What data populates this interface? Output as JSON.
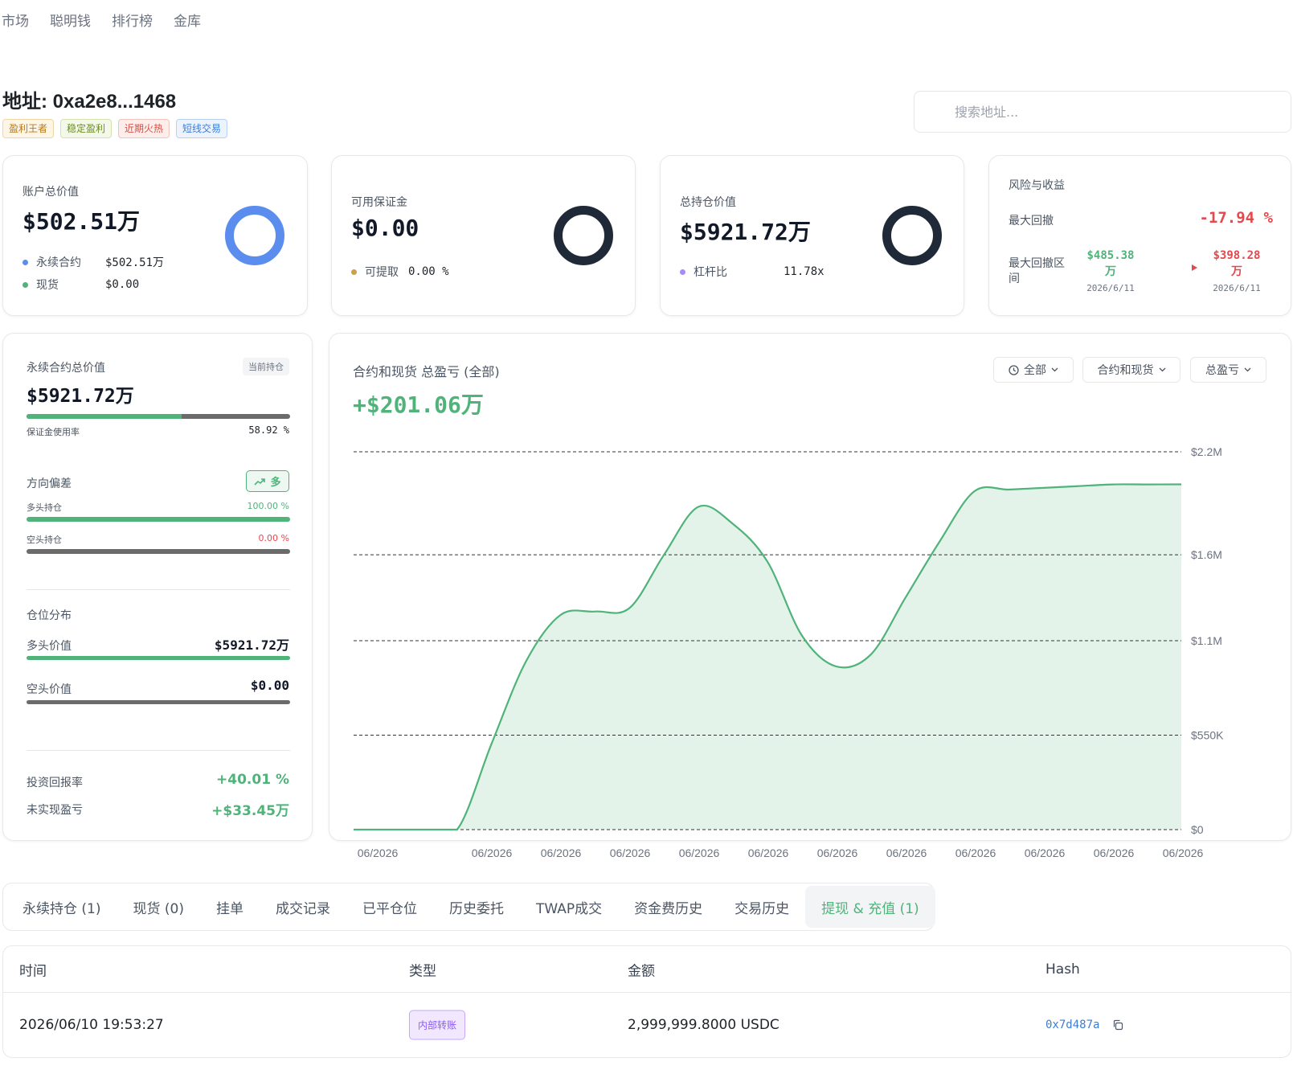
{
  "nav": {
    "items": [
      "市场",
      "聪明钱",
      "排行榜",
      "金库"
    ]
  },
  "header": {
    "address_label": "地址: 0xa2e8...1468",
    "tags": [
      "盈利王者",
      "稳定盈利",
      "近期火热",
      "短线交易"
    ],
    "search_placeholder": "搜索地址..."
  },
  "cards": {
    "account": {
      "label": "账户总价值",
      "value": "$502.51万",
      "rows": [
        {
          "label": "永续合约",
          "value": "$502.51万",
          "color": "#5b8def"
        },
        {
          "label": "现货",
          "value": "$0.00",
          "color": "#4fb37a"
        }
      ],
      "ring_color": "#5b8def"
    },
    "margin": {
      "label": "可用保证金",
      "value": "$0.00",
      "rows": [
        {
          "label": "可提取",
          "value": "0.00 %",
          "color": "#c9a04e"
        }
      ],
      "ring_color": "#1f2937"
    },
    "position": {
      "label": "总持仓价值",
      "value": "$5921.72万",
      "rows": [
        {
          "label": "杠杆比",
          "value": "11.78x",
          "color": "#a78bfa"
        }
      ],
      "ring_color": "#1f2937"
    },
    "risk": {
      "label": "风险与收益",
      "max_drawdown_label": "最大回撤",
      "max_drawdown_value": "-17.94 %",
      "range_label": "最大回撤区间",
      "from_value": "$485.38 万",
      "from_date": "2026/6/11",
      "to_value": "$398.28 万",
      "to_date": "2026/6/11"
    }
  },
  "detail": {
    "perp_label": "永续合约总价值",
    "current_badge": "当前持仓",
    "perp_value": "$5921.72万",
    "margin_usage_label": "保证金使用率",
    "margin_usage_value": "58.92 %",
    "margin_usage": 0.5892,
    "direction_label": "方向偏差",
    "direction_badge": "多",
    "long_label": "多头持仓",
    "long_pct": "100.00 %",
    "long_fraction": 1.0,
    "short_label": "空头持仓",
    "short_pct": "0.00 %",
    "short_fraction": 0.0,
    "distribution_label": "仓位分布",
    "long_value_label": "多头价值",
    "long_value": "$5921.72万",
    "long_value_fraction": 1.0,
    "short_value_label": "空头价值",
    "short_value": "$0.00",
    "short_value_fraction": 0.0,
    "roi_label": "投资回报率",
    "roi_value": "+40.01 %",
    "unrealized_label": "未实现盈亏",
    "unrealized_value": "+$33.45万"
  },
  "chart_panel": {
    "title": "合约和现货 总盈亏 (全部)",
    "total": "+$201.06万",
    "controls": [
      "全部",
      "合约和现货",
      "总盈亏"
    ]
  },
  "chart_data": {
    "type": "area",
    "title": "合约和现货 总盈亏 (全部)",
    "x": [
      "06/2026",
      "06/2026",
      "06/2026",
      "06/2026",
      "06/2026",
      "06/2026",
      "06/2026",
      "06/2026",
      "06/2026",
      "06/2026",
      "06/2026",
      "06/2026",
      "06/2026",
      "06/2026",
      "06/2026",
      "06/2026",
      "06/2026",
      "06/2026",
      "06/2026",
      "06/2026",
      "06/2026",
      "06/2026",
      "06/2026",
      "06/2026",
      "06/2026"
    ],
    "values": [
      0,
      0,
      0,
      0,
      500000,
      980000,
      1250000,
      1270000,
      1290000,
      1600000,
      1880000,
      1780000,
      1560000,
      1130000,
      950000,
      1020000,
      1350000,
      1680000,
      1970000,
      1980000,
      1990000,
      2000000,
      2010000,
      2010000,
      2010600
    ],
    "x_tick_labels": [
      "06/2026",
      "06/2026",
      "06/2026",
      "06/2026",
      "06/2026",
      "06/2026",
      "06/2026",
      "06/2026",
      "06/2026",
      "06/2026",
      "06/2026",
      "06/2026"
    ],
    "y_ticks": [
      0,
      550000,
      1100000,
      1600000,
      2200000
    ],
    "y_tick_labels": [
      "$0",
      "$550K",
      "$1.1M",
      "$1.6M",
      "$2.2M"
    ],
    "ylim": [
      0,
      2200000
    ],
    "grid": true,
    "line_color": "#4fb37a",
    "fill_color": "#e3f3e9"
  },
  "tabs": [
    "永续持仓 (1)",
    "现货 (0)",
    "挂单",
    "成交记录",
    "已平仓位",
    "历史委托",
    "TWAP成交",
    "资金费历史",
    "交易历史",
    "提现 & 充值 (1)"
  ],
  "active_tab": 9,
  "table": {
    "headers": [
      "时间",
      "类型",
      "金额",
      "Hash"
    ],
    "rows": [
      {
        "time": "2026/06/10 19:53:27",
        "type": "内部转账",
        "amount": "2,999,999.8000 USDC",
        "hash": "0x7d487a"
      }
    ]
  }
}
